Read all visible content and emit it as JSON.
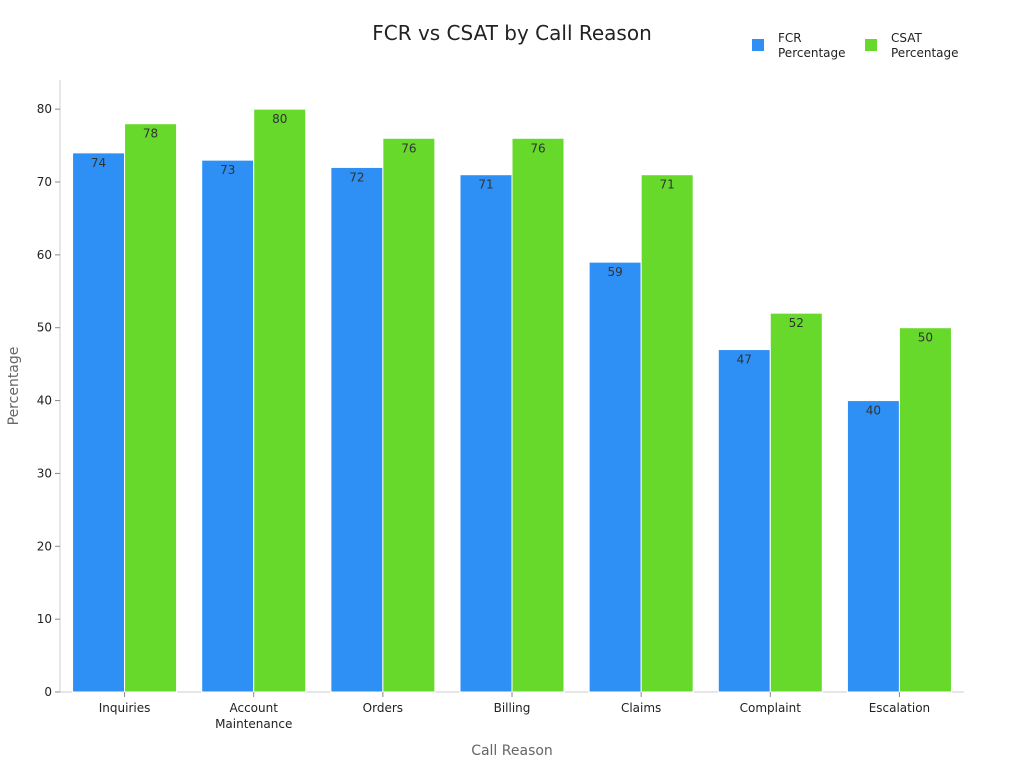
{
  "chart_data": {
    "type": "bar",
    "title": "FCR vs CSAT by Call Reason",
    "xlabel": "Call Reason",
    "ylabel": "Percentage",
    "ylim": [
      0,
      84
    ],
    "yticks": [
      0,
      10,
      20,
      30,
      40,
      50,
      60,
      70,
      80
    ],
    "grid": false,
    "legend_position": "top-right",
    "categories": [
      [
        "Inquiries"
      ],
      [
        "Account",
        "Maintenance"
      ],
      [
        "Orders"
      ],
      [
        "Billing"
      ],
      [
        "Claims"
      ],
      [
        "Complaint"
      ],
      [
        "Escalation"
      ]
    ],
    "series": [
      {
        "name": [
          "FCR",
          "Percentage"
        ],
        "color": "#2e8ff5",
        "values": [
          74,
          73,
          72,
          71,
          59,
          47,
          40
        ]
      },
      {
        "name": [
          "CSAT",
          "Percentage"
        ],
        "color": "#66d92b",
        "values": [
          78,
          80,
          76,
          76,
          71,
          52,
          50
        ]
      }
    ]
  }
}
